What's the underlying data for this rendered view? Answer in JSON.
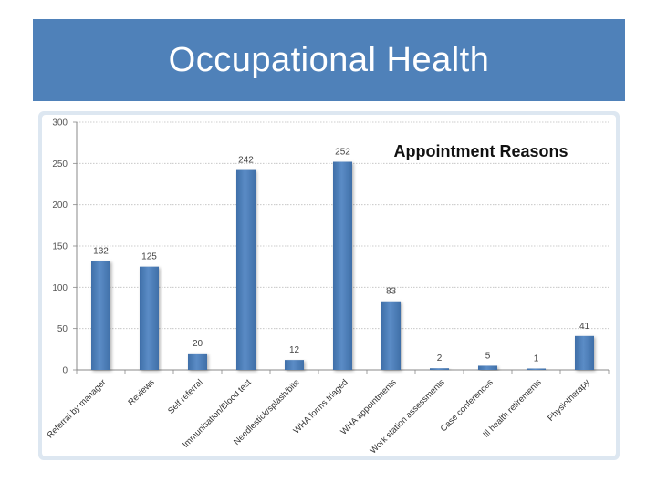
{
  "slide": {
    "title": "Occupational Health"
  },
  "colors": {
    "header_bg": "#4f81b9",
    "bar": "#4f81bd",
    "frame": "#dde7f1"
  },
  "chart_data": {
    "type": "bar",
    "title": "Appointment Reasons",
    "xlabel": "",
    "ylabel": "",
    "ylim": [
      0,
      300
    ],
    "yticks": [
      0,
      50,
      100,
      150,
      200,
      250,
      300
    ],
    "grid": true,
    "legend": "none",
    "categories": [
      "Referral by manager",
      "Reviews",
      "Self referral",
      "Immunisation/Blood test",
      "Needlestick/splash/bite",
      "WHA forms triaged",
      "WHA appointments",
      "Work station assessments",
      "Case conferences",
      "Ill health retirements",
      "Physiotherapy"
    ],
    "values": [
      132,
      125,
      20,
      242,
      12,
      252,
      83,
      2,
      5,
      1,
      41
    ]
  }
}
